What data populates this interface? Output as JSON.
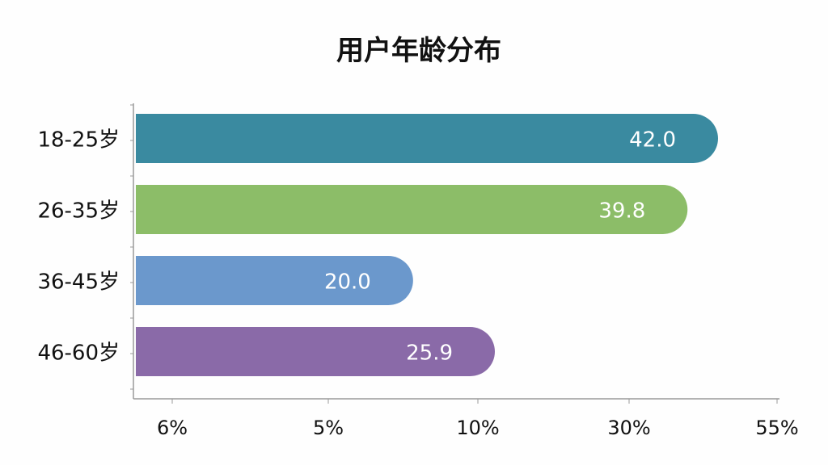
{
  "chart_data": {
    "type": "bar",
    "orientation": "horizontal",
    "title": "用户年龄分布",
    "categories": [
      "18-25岁",
      "26-35岁",
      "36-45岁",
      "46-60岁"
    ],
    "values": [
      42.0,
      39.8,
      20.0,
      25.9
    ],
    "value_labels": [
      "42.0",
      "39.8",
      "20.0",
      "25.9"
    ],
    "x_tick_labels": [
      "6%",
      "5%",
      "10%",
      "30%",
      "55%"
    ],
    "colors": [
      "#3a8aa0",
      "#8cbd68",
      "#6b98cc",
      "#8a6aa8"
    ],
    "grid": false,
    "legend": "none"
  }
}
